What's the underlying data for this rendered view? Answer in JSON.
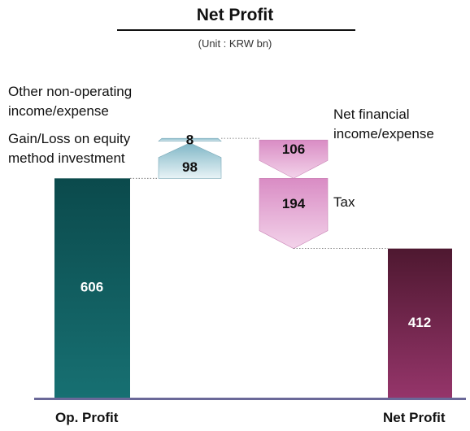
{
  "chart_data": {
    "type": "bar",
    "title": "Net Profit",
    "subtitle": "(Unit : KRW bn)",
    "categories": [
      "Op. Profit",
      "Net Profit"
    ],
    "values": [
      606,
      412
    ],
    "steps": [
      {
        "label": "Gain/Loss on equity method investment",
        "value": 98,
        "direction": "up"
      },
      {
        "label": "Other non-operating income/expense",
        "value": 8,
        "direction": "up"
      },
      {
        "label": "Net financial income/expense",
        "value": -106,
        "direction": "down"
      },
      {
        "label": "Tax",
        "value": -194,
        "direction": "down"
      }
    ],
    "colors": {
      "op_profit": "#0e5d5f",
      "net_profit": "#7a2a56",
      "increase": "#a8cfd8",
      "decrease": "#e2a9d3",
      "axis": "#6a6898"
    },
    "grid": false,
    "legend": "none"
  }
}
